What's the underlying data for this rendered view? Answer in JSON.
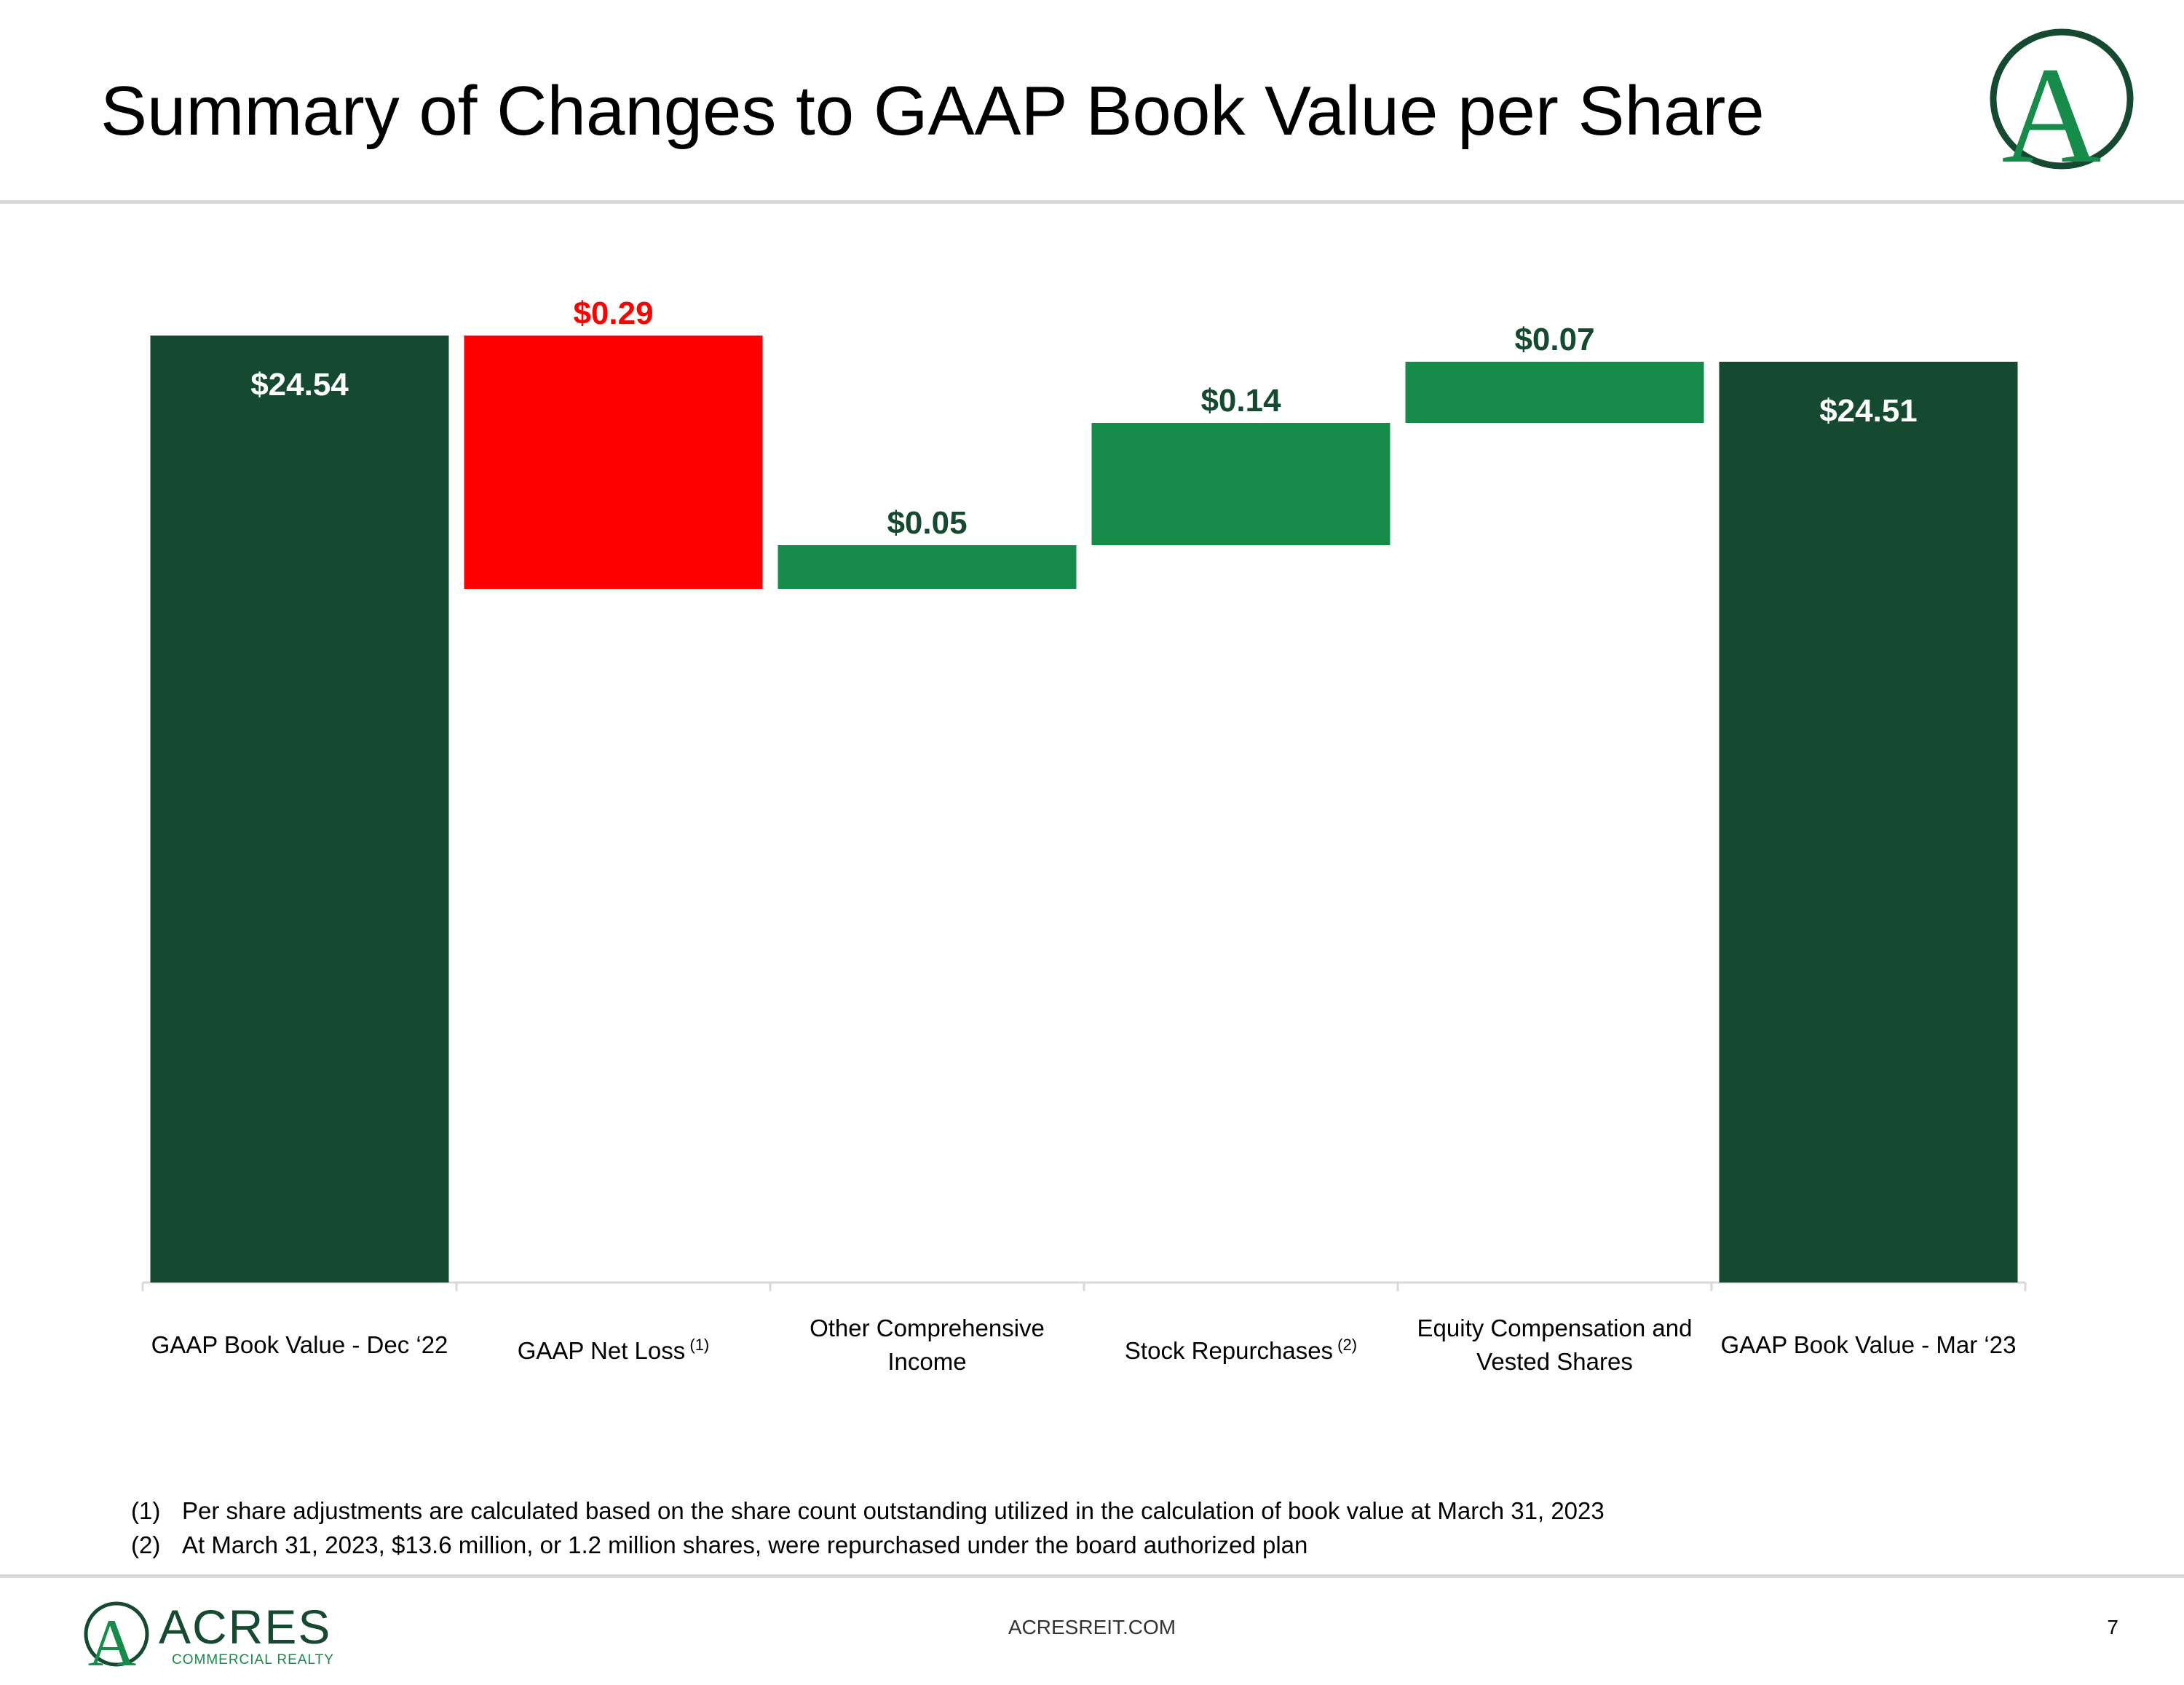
{
  "page": {
    "title": "Summary of Changes to GAAP Book Value per Share",
    "footer_site": "ACRESREIT.COM",
    "page_number": "7",
    "logo_name": "ACRES",
    "logo_sub": "COMMERCIAL REALTY",
    "logo_letter": "A"
  },
  "chart_data": {
    "type": "waterfall",
    "title": "Summary of Changes to GAAP Book Value per Share",
    "ylim": [
      0,
      24.54
    ],
    "colors": {
      "total": "#154a31",
      "decrease": "#ff0000",
      "increase": "#168b4a",
      "axis": "#d9d9d9"
    },
    "categories": [
      {
        "label": "GAAP Book Value - Dec ‘22",
        "note": "",
        "label_lines": [
          "GAAP Book Value - Dec ‘22"
        ]
      },
      {
        "label": "GAAP Net Loss",
        "note": "(1)",
        "label_lines": [
          "GAAP Net Loss"
        ]
      },
      {
        "label": "Other Comprehensive Income",
        "note": "",
        "label_lines": [
          "Other Comprehensive",
          "Income"
        ]
      },
      {
        "label": "Stock Repurchases",
        "note": "(2)",
        "label_lines": [
          "Stock Repurchases"
        ]
      },
      {
        "label": "Equity Compensation and Vested Shares",
        "note": "",
        "label_lines": [
          "Equity Compensation and",
          "Vested Shares"
        ]
      },
      {
        "label": "GAAP Book Value - Mar ‘23",
        "note": "",
        "label_lines": [
          "GAAP Book Value - Mar ‘23"
        ]
      }
    ],
    "bars": [
      {
        "kind": "total",
        "value": 24.54,
        "label": "$24.54"
      },
      {
        "kind": "decrease",
        "value": 0.29,
        "label": "$0.29"
      },
      {
        "kind": "increase",
        "value": 0.05,
        "label": "$0.05"
      },
      {
        "kind": "increase",
        "value": 0.14,
        "label": "$0.14"
      },
      {
        "kind": "increase",
        "value": 0.07,
        "label": "$0.07"
      },
      {
        "kind": "total",
        "value": 24.51,
        "label": "$24.51"
      }
    ]
  },
  "footnotes": [
    {
      "num": "(1)",
      "text": "Per share adjustments are calculated based on the share count outstanding utilized in the calculation of book value at March 31, 2023"
    },
    {
      "num": "(2)",
      "text": "At March 31, 2023, $13.6 million, or 1.2 million shares, were repurchased under the board authorized plan"
    }
  ]
}
